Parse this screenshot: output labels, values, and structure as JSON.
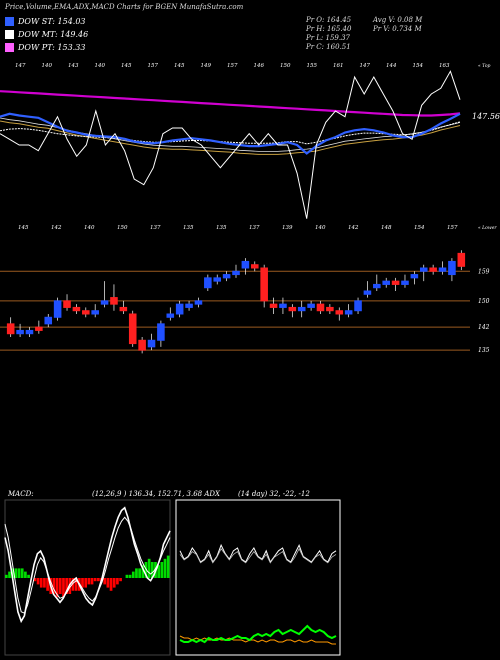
{
  "header": {
    "title": "Price,Volume,EMA,ADX,MACD Charts for BGEN  MunafaSutra.com",
    "open": "Pr  O: 164.45",
    "high": "Pr  H: 165.40",
    "low": "Pr  L: 159.37",
    "close": "Pr  C: 160.51",
    "avg_vol": "Avg V: 0.08  M",
    "vol": "Pr  V: 0.734  M"
  },
  "legend": [
    {
      "label": "DOW ST: 154.03",
      "color": "#3060ff"
    },
    {
      "label": "DOW MT: 149.46",
      "color": "#ffffff"
    },
    {
      "label": "DOW PT: 153.33",
      "color": "#ff60ff"
    }
  ],
  "colors": {
    "up": "#2050ff",
    "down": "#ff2020",
    "ema_short": "#3060ff",
    "ema_long": "#d000d0",
    "ema_mid": "#c8a040",
    "grid": "#9a5a20",
    "macd_up": "#00dd00",
    "macd_down": "#ff0000",
    "adx_plus": "#00ff00",
    "adx_minus": "#ff9900"
  },
  "chart_data": {
    "type": "candlestick",
    "top_panel_right_label": "« Top",
    "top_panel_last_value": "147.56",
    "lower_panel_right_label": "« Lower",
    "top_high_labels": [
      "147",
      "140",
      "143",
      "140",
      "145",
      "157",
      "145",
      "149",
      "157",
      "146",
      "150",
      "155",
      "161",
      "147",
      "144",
      "154",
      "163"
    ],
    "top_low_labels": [
      "145",
      "142",
      "140",
      "150",
      "137",
      "135",
      "135",
      "137",
      "139",
      "140",
      "142",
      "148",
      "154",
      "157"
    ],
    "candles": [
      {
        "o": 143,
        "c": 140,
        "h": 145,
        "l": 139
      },
      {
        "o": 140,
        "c": 141,
        "h": 143,
        "l": 139
      },
      {
        "o": 140,
        "c": 141,
        "h": 142,
        "l": 139
      },
      {
        "o": 142,
        "c": 141,
        "h": 144,
        "l": 140
      },
      {
        "o": 143,
        "c": 145,
        "h": 146,
        "l": 142
      },
      {
        "o": 145,
        "c": 150,
        "h": 151,
        "l": 144
      },
      {
        "o": 150,
        "c": 148,
        "h": 152,
        "l": 147
      },
      {
        "o": 148,
        "c": 147,
        "h": 149,
        "l": 146
      },
      {
        "o": 147,
        "c": 146,
        "h": 148,
        "l": 145
      },
      {
        "o": 146,
        "c": 147,
        "h": 149,
        "l": 145
      },
      {
        "o": 149,
        "c": 150,
        "h": 156,
        "l": 148
      },
      {
        "o": 151,
        "c": 149,
        "h": 155,
        "l": 147
      },
      {
        "o": 148,
        "c": 147,
        "h": 150,
        "l": 146
      },
      {
        "o": 146,
        "c": 137,
        "h": 147,
        "l": 136
      },
      {
        "o": 138,
        "c": 135,
        "h": 139,
        "l": 134
      },
      {
        "o": 136,
        "c": 138,
        "h": 140,
        "l": 135
      },
      {
        "o": 138,
        "c": 143,
        "h": 144,
        "l": 136
      },
      {
        "o": 145,
        "c": 146,
        "h": 148,
        "l": 144
      },
      {
        "o": 146,
        "c": 149,
        "h": 150,
        "l": 145
      },
      {
        "o": 148,
        "c": 149,
        "h": 150,
        "l": 147
      },
      {
        "o": 149,
        "c": 150,
        "h": 151,
        "l": 148
      },
      {
        "o": 154,
        "c": 157,
        "h": 158,
        "l": 153
      },
      {
        "o": 156,
        "c": 157,
        "h": 158,
        "l": 155
      },
      {
        "o": 157,
        "c": 158,
        "h": 159,
        "l": 156
      },
      {
        "o": 158,
        "c": 159,
        "h": 161,
        "l": 157
      },
      {
        "o": 160,
        "c": 162,
        "h": 163,
        "l": 158
      },
      {
        "o": 161,
        "c": 160,
        "h": 162,
        "l": 159
      },
      {
        "o": 160,
        "c": 150,
        "h": 161,
        "l": 148
      },
      {
        "o": 149,
        "c": 148,
        "h": 151,
        "l": 146
      },
      {
        "o": 148,
        "c": 149,
        "h": 151,
        "l": 146
      },
      {
        "o": 148,
        "c": 147,
        "h": 149,
        "l": 145
      },
      {
        "o": 147,
        "c": 148,
        "h": 150,
        "l": 145
      },
      {
        "o": 148,
        "c": 149,
        "h": 150,
        "l": 147
      },
      {
        "o": 149,
        "c": 147,
        "h": 150,
        "l": 146
      },
      {
        "o": 148,
        "c": 147,
        "h": 149,
        "l": 146
      },
      {
        "o": 147,
        "c": 146,
        "h": 148,
        "l": 144
      },
      {
        "o": 146,
        "c": 147,
        "h": 149,
        "l": 145
      },
      {
        "o": 147,
        "c": 150,
        "h": 151,
        "l": 146
      },
      {
        "o": 152,
        "c": 153,
        "h": 156,
        "l": 151
      },
      {
        "o": 154,
        "c": 155,
        "h": 158,
        "l": 153
      },
      {
        "o": 155,
        "c": 156,
        "h": 157,
        "l": 154
      },
      {
        "o": 156,
        "c": 155,
        "h": 157,
        "l": 153
      },
      {
        "o": 155,
        "c": 156,
        "h": 158,
        "l": 154
      },
      {
        "o": 157,
        "c": 158,
        "h": 159,
        "l": 155
      },
      {
        "o": 159,
        "c": 160,
        "h": 161,
        "l": 156
      },
      {
        "o": 160,
        "c": 159,
        "h": 161,
        "l": 158
      },
      {
        "o": 159,
        "c": 160,
        "h": 162,
        "l": 158
      },
      {
        "o": 158,
        "c": 162,
        "h": 163,
        "l": 156
      },
      {
        "o": 164.45,
        "c": 160.51,
        "h": 165.4,
        "l": 159.37
      }
    ],
    "price_axis_labels": [
      159,
      150,
      142,
      135
    ],
    "top_series": {
      "pt": [
        150.5,
        150.4,
        150.3,
        150.2,
        150.1,
        150.0,
        149.9,
        149.8,
        149.7,
        149.6,
        149.5,
        149.4,
        149.3,
        149.2,
        149.1,
        149.0,
        148.9,
        148.8,
        148.7,
        148.6,
        148.5,
        148.4,
        148.3,
        148.2,
        148.1,
        148.0,
        147.9,
        147.8,
        147.7,
        147.6,
        147.5,
        147.4,
        147.3,
        147.2,
        147.1,
        147.0,
        146.9,
        146.8,
        146.7,
        146.6,
        146.5,
        146.4,
        146.3,
        146.25,
        146.2,
        146.2,
        146.3,
        146.4,
        146.6
      ],
      "st": [
        146.0,
        146.5,
        146.2,
        146.0,
        145.8,
        145.0,
        144.2,
        143.5,
        143.2,
        142.8,
        142.6,
        142.5,
        142.4,
        142.1,
        141.6,
        141.4,
        141.3,
        141.5,
        141.8,
        142.0,
        142.2,
        142.0,
        141.8,
        141.5,
        141.2,
        141.0,
        140.8,
        140.8,
        141.0,
        141.2,
        141.5,
        141.0,
        139.5,
        140.8,
        141.8,
        142.4,
        143.2,
        143.6,
        143.8,
        143.6,
        143.2,
        142.7,
        142.4,
        142.4,
        143.0,
        143.8,
        144.8,
        145.6,
        146.5
      ],
      "mt": [
        143.5,
        143.8,
        143.9,
        143.8,
        143.6,
        143.3,
        143.0,
        142.8,
        142.6,
        142.5,
        142.4,
        142.3,
        142.2,
        142.0,
        141.8,
        141.6,
        141.5,
        141.5,
        141.6,
        141.7,
        141.8,
        141.8,
        141.7,
        141.6,
        141.5,
        141.4,
        141.3,
        141.3,
        141.3,
        141.4,
        141.6,
        141.6,
        141.2,
        141.5,
        141.9,
        142.2,
        142.6,
        142.9,
        143.1,
        143.1,
        143.0,
        142.9,
        142.8,
        142.9,
        143.2,
        143.6,
        144.1,
        144.6,
        145.1
      ],
      "price": [
        143,
        142,
        141,
        141,
        140,
        143,
        146,
        142,
        139,
        141,
        147,
        141,
        143,
        140,
        135,
        134,
        137,
        143,
        144,
        144,
        142,
        141,
        139,
        137,
        139,
        141,
        143,
        141,
        143,
        141,
        141,
        136,
        128,
        141,
        145,
        147,
        146,
        153,
        150,
        153,
        150,
        147,
        143,
        142,
        148,
        150,
        151,
        154,
        149
      ],
      "close_envelope": [
        146.3,
        146.0,
        145.8,
        145.5,
        145.2,
        145.0,
        144.6,
        144.2,
        143.8,
        143.5,
        143.2,
        142.9,
        142.6,
        142.3,
        142.0,
        141.7,
        141.5,
        141.4,
        141.3,
        141.3,
        141.2,
        141.1,
        141.0,
        140.9,
        140.8,
        140.6,
        140.5,
        140.4,
        140.4,
        140.4,
        140.5,
        140.7,
        140.8,
        141.0,
        141.4,
        141.8,
        142.2,
        142.4,
        142.6,
        142.8,
        143.0,
        143.1,
        143.3,
        143.5,
        143.8,
        144.2,
        144.7,
        145.1,
        145.5
      ]
    },
    "macd": {
      "label": "MACD:",
      "params": "(12,26,9 ) 136.34,  152.71, 3.68 ADX",
      "hist": [
        1,
        2,
        3,
        3,
        3,
        3,
        2,
        1,
        0,
        -1,
        -2,
        -3,
        -3,
        -4,
        -5,
        -5,
        -6,
        -5,
        -6,
        -5,
        -5,
        -4,
        -4,
        -4,
        -3,
        -3,
        -2,
        -2,
        -1,
        -1,
        -1,
        -2,
        -3,
        -4,
        -3,
        -2,
        -1,
        0,
        1,
        1,
        2,
        3,
        3,
        4,
        5,
        6,
        5,
        5,
        4,
        5,
        6,
        7
      ],
      "macd_line": [
        30,
        20,
        5,
        -10,
        -25,
        -32,
        -28,
        -15,
        -2,
        10,
        18,
        20,
        15,
        5,
        -5,
        -12,
        -15,
        -18,
        -15,
        -10,
        -5,
        -2,
        0,
        -5,
        -10,
        -15,
        -18,
        -20,
        -15,
        -8,
        0,
        10,
        20,
        30,
        38,
        45,
        50,
        52,
        45,
        35,
        25,
        18,
        10,
        5,
        0,
        -2,
        2,
        8,
        15,
        25,
        30,
        35
      ],
      "signal_line": [
        40,
        30,
        15,
        0,
        -15,
        -25,
        -26,
        -20,
        -10,
        0,
        10,
        15,
        12,
        5,
        -2,
        -8,
        -12,
        -15,
        -14,
        -11,
        -7,
        -4,
        -2,
        -4,
        -8,
        -12,
        -15,
        -17,
        -14,
        -9,
        -3,
        5,
        14,
        22,
        30,
        37,
        42,
        45,
        42,
        36,
        28,
        21,
        14,
        9,
        5,
        3,
        5,
        9,
        14,
        20,
        25,
        30
      ]
    },
    "adx": {
      "params": "(14  day) 32,  -22,  -12",
      "dx_top": [
        28,
        22,
        24,
        30,
        26,
        20,
        22,
        28,
        20,
        24,
        32,
        26,
        22,
        28,
        30,
        22,
        20,
        26,
        30,
        24,
        22,
        28,
        20,
        24,
        28,
        30,
        22,
        20,
        26,
        32,
        24,
        22,
        20,
        24,
        28,
        22,
        20,
        26,
        28
      ],
      "dx_top_b": [
        24,
        20,
        22,
        26,
        24,
        18,
        20,
        24,
        18,
        22,
        28,
        24,
        20,
        24,
        26,
        20,
        18,
        22,
        26,
        22,
        20,
        24,
        18,
        22,
        24,
        26,
        20,
        18,
        22,
        28,
        22,
        20,
        18,
        22,
        24,
        20,
        18,
        22,
        24
      ],
      "plus": [
        4,
        3,
        3,
        4,
        3,
        4,
        3,
        5,
        4,
        4,
        5,
        4,
        4,
        5,
        6,
        5,
        5,
        4,
        6,
        7,
        6,
        7,
        6,
        8,
        9,
        7,
        8,
        9,
        8,
        7,
        9,
        11,
        9,
        8,
        9,
        8,
        6,
        5,
        6
      ],
      "minus": [
        6,
        5,
        5,
        4,
        5,
        4,
        5,
        4,
        4,
        5,
        4,
        4,
        5,
        4,
        4,
        4,
        3,
        4,
        4,
        3,
        4,
        3,
        4,
        4,
        3,
        3,
        4,
        4,
        3,
        4,
        3,
        3,
        4,
        3,
        3,
        3,
        3,
        2,
        2
      ]
    }
  }
}
